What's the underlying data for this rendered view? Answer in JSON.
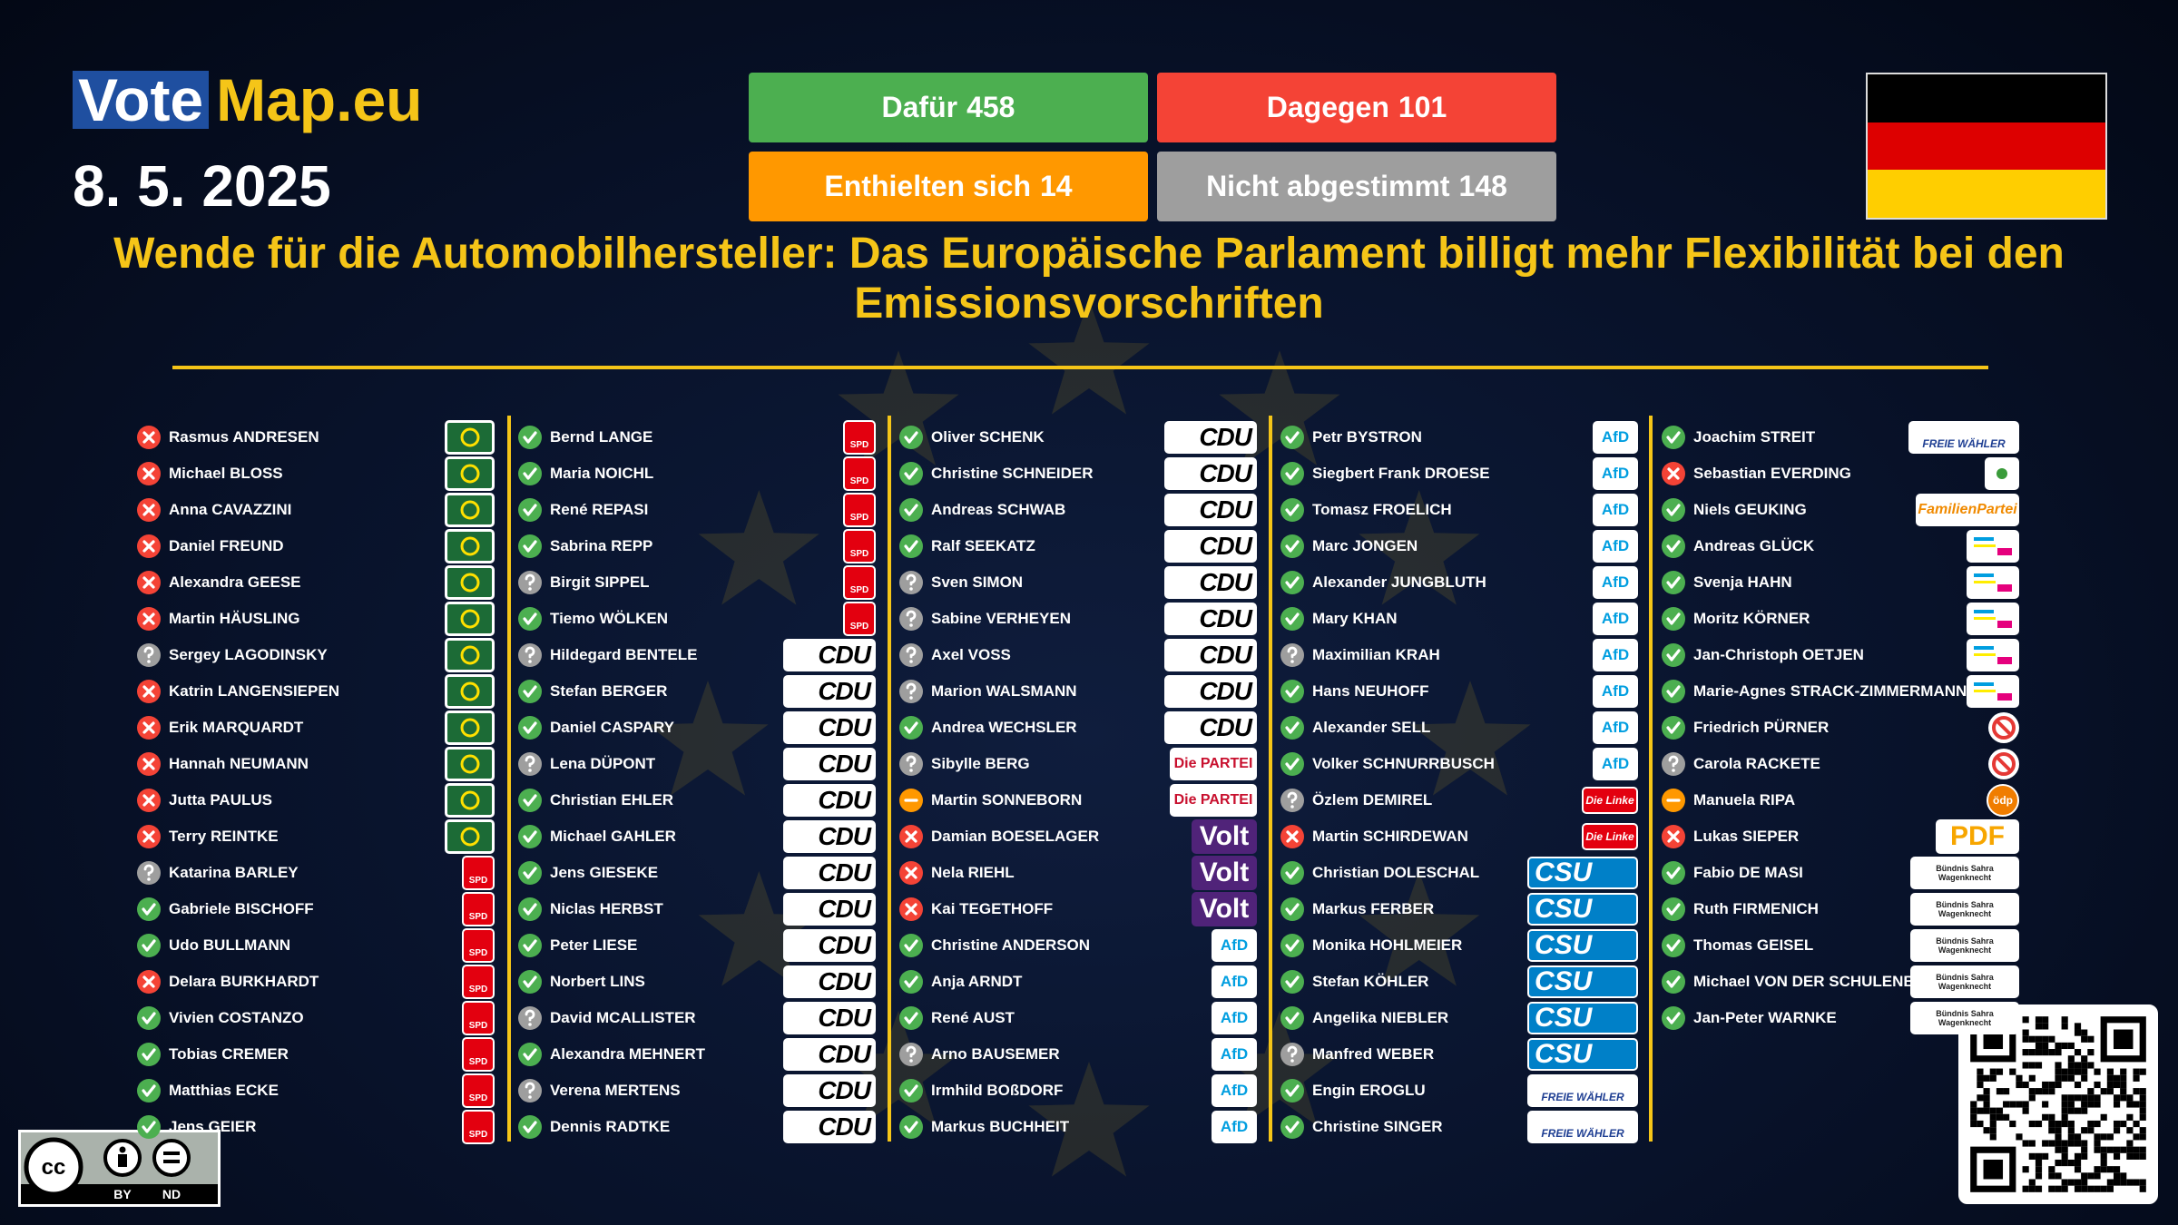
{
  "header": {
    "logo_vote": "Vote",
    "logo_map": "Map.eu",
    "date": "8. 5. 2025"
  },
  "tally": [
    {
      "label": "Dafür",
      "count": 458,
      "color": "#4caf50"
    },
    {
      "label": "Dagegen",
      "count": 101,
      "color": "#f44336"
    },
    {
      "label": "Enthielten sich",
      "count": 14,
      "color": "#ff9800"
    },
    {
      "label": "Nicht abgestimmt",
      "count": 148,
      "color": "#9e9e9e"
    }
  ],
  "title": "Wende für die Automobilhersteller: Das Europäische Parlament billigt mehr Flexibilität bei den Emissionsvorschriften",
  "parties": {
    "greens": {},
    "spd": {
      "label": "SPD"
    },
    "cdu": {
      "label": "CDU"
    },
    "partei": {
      "label": "Die PARTEI"
    },
    "volt": {
      "label": "Volt"
    },
    "afd": {
      "label": "AfD"
    },
    "linke": {
      "label": "Die Linke"
    },
    "csu": {
      "label": "CSU"
    },
    "fw": {
      "label": "FREIE WÄHLER"
    },
    "tier": {},
    "familie": {
      "label": "FamilienPartei"
    },
    "fdp": {},
    "indep": {},
    "oedp": {
      "label": "ödp"
    },
    "pdf": {
      "label": "PDF"
    },
    "bsw": {
      "label": "Bündnis Sahra Wagenknecht"
    }
  },
  "columns": [
    [
      {
        "name": "Rasmus ANDRESEN",
        "vote": "against",
        "party": "greens"
      },
      {
        "name": "Michael BLOSS",
        "vote": "against",
        "party": "greens"
      },
      {
        "name": "Anna CAVAZZINI",
        "vote": "against",
        "party": "greens"
      },
      {
        "name": "Daniel FREUND",
        "vote": "against",
        "party": "greens"
      },
      {
        "name": "Alexandra GEESE",
        "vote": "against",
        "party": "greens"
      },
      {
        "name": "Martin HÄUSLING",
        "vote": "against",
        "party": "greens"
      },
      {
        "name": "Sergey LAGODINSKY",
        "vote": "absent",
        "party": "greens"
      },
      {
        "name": "Katrin LANGENSIEPEN",
        "vote": "against",
        "party": "greens"
      },
      {
        "name": "Erik MARQUARDT",
        "vote": "against",
        "party": "greens"
      },
      {
        "name": "Hannah NEUMANN",
        "vote": "against",
        "party": "greens"
      },
      {
        "name": "Jutta PAULUS",
        "vote": "against",
        "party": "greens"
      },
      {
        "name": "Terry REINTKE",
        "vote": "against",
        "party": "greens"
      },
      {
        "name": "Katarina BARLEY",
        "vote": "absent",
        "party": "spd"
      },
      {
        "name": "Gabriele BISCHOFF",
        "vote": "for",
        "party": "spd"
      },
      {
        "name": "Udo BULLMANN",
        "vote": "for",
        "party": "spd"
      },
      {
        "name": "Delara BURKHARDT",
        "vote": "against",
        "party": "spd"
      },
      {
        "name": "Vivien COSTANZO",
        "vote": "for",
        "party": "spd"
      },
      {
        "name": "Tobias CREMER",
        "vote": "for",
        "party": "spd"
      },
      {
        "name": "Matthias ECKE",
        "vote": "for",
        "party": "spd"
      },
      {
        "name": "Jens GEIER",
        "vote": "for",
        "party": "spd"
      }
    ],
    [
      {
        "name": "Bernd LANGE",
        "vote": "for",
        "party": "spd"
      },
      {
        "name": "Maria NOICHL",
        "vote": "for",
        "party": "spd"
      },
      {
        "name": "René REPASI",
        "vote": "for",
        "party": "spd"
      },
      {
        "name": "Sabrina REPP",
        "vote": "for",
        "party": "spd"
      },
      {
        "name": "Birgit SIPPEL",
        "vote": "absent",
        "party": "spd"
      },
      {
        "name": "Tiemo WÖLKEN",
        "vote": "for",
        "party": "spd"
      },
      {
        "name": "Hildegard BENTELE",
        "vote": "absent",
        "party": "cdu"
      },
      {
        "name": "Stefan BERGER",
        "vote": "for",
        "party": "cdu"
      },
      {
        "name": "Daniel CASPARY",
        "vote": "for",
        "party": "cdu"
      },
      {
        "name": "Lena DÜPONT",
        "vote": "absent",
        "party": "cdu"
      },
      {
        "name": "Christian EHLER",
        "vote": "for",
        "party": "cdu"
      },
      {
        "name": "Michael GAHLER",
        "vote": "for",
        "party": "cdu"
      },
      {
        "name": "Jens GIESEKE",
        "vote": "for",
        "party": "cdu"
      },
      {
        "name": "Niclas HERBST",
        "vote": "for",
        "party": "cdu"
      },
      {
        "name": "Peter LIESE",
        "vote": "for",
        "party": "cdu"
      },
      {
        "name": "Norbert LINS",
        "vote": "for",
        "party": "cdu"
      },
      {
        "name": "David MCALLISTER",
        "vote": "absent",
        "party": "cdu"
      },
      {
        "name": "Alexandra MEHNERT",
        "vote": "for",
        "party": "cdu"
      },
      {
        "name": "Verena MERTENS",
        "vote": "absent",
        "party": "cdu"
      },
      {
        "name": "Dennis RADTKE",
        "vote": "for",
        "party": "cdu"
      }
    ],
    [
      {
        "name": "Oliver SCHENK",
        "vote": "for",
        "party": "cdu"
      },
      {
        "name": "Christine SCHNEIDER",
        "vote": "for",
        "party": "cdu"
      },
      {
        "name": "Andreas SCHWAB",
        "vote": "for",
        "party": "cdu"
      },
      {
        "name": "Ralf SEEKATZ",
        "vote": "for",
        "party": "cdu"
      },
      {
        "name": "Sven SIMON",
        "vote": "absent",
        "party": "cdu"
      },
      {
        "name": "Sabine VERHEYEN",
        "vote": "absent",
        "party": "cdu"
      },
      {
        "name": "Axel VOSS",
        "vote": "absent",
        "party": "cdu"
      },
      {
        "name": "Marion WALSMANN",
        "vote": "absent",
        "party": "cdu"
      },
      {
        "name": "Andrea WECHSLER",
        "vote": "for",
        "party": "cdu"
      },
      {
        "name": "Sibylle BERG",
        "vote": "absent",
        "party": "partei"
      },
      {
        "name": "Martin SONNEBORN",
        "vote": "abstain",
        "party": "partei"
      },
      {
        "name": "Damian BOESELAGER",
        "vote": "against",
        "party": "volt"
      },
      {
        "name": "Nela RIEHL",
        "vote": "against",
        "party": "volt"
      },
      {
        "name": "Kai TEGETHOFF",
        "vote": "against",
        "party": "volt"
      },
      {
        "name": "Christine ANDERSON",
        "vote": "for",
        "party": "afd"
      },
      {
        "name": "Anja ARNDT",
        "vote": "for",
        "party": "afd"
      },
      {
        "name": "René AUST",
        "vote": "for",
        "party": "afd"
      },
      {
        "name": "Arno BAUSEMER",
        "vote": "absent",
        "party": "afd"
      },
      {
        "name": "Irmhild BOßDORF",
        "vote": "for",
        "party": "afd"
      },
      {
        "name": "Markus BUCHHEIT",
        "vote": "for",
        "party": "afd"
      }
    ],
    [
      {
        "name": "Petr BYSTRON",
        "vote": "for",
        "party": "afd"
      },
      {
        "name": "Siegbert Frank DROESE",
        "vote": "for",
        "party": "afd"
      },
      {
        "name": "Tomasz FROELICH",
        "vote": "for",
        "party": "afd"
      },
      {
        "name": "Marc JONGEN",
        "vote": "for",
        "party": "afd"
      },
      {
        "name": "Alexander JUNGBLUTH",
        "vote": "for",
        "party": "afd"
      },
      {
        "name": "Mary KHAN",
        "vote": "for",
        "party": "afd"
      },
      {
        "name": "Maximilian KRAH",
        "vote": "absent",
        "party": "afd"
      },
      {
        "name": "Hans NEUHOFF",
        "vote": "for",
        "party": "afd"
      },
      {
        "name": "Alexander SELL",
        "vote": "for",
        "party": "afd"
      },
      {
        "name": "Volker SCHNURRBUSCH",
        "vote": "for",
        "party": "afd"
      },
      {
        "name": "Özlem DEMIREL",
        "vote": "absent",
        "party": "linke"
      },
      {
        "name": "Martin SCHIRDEWAN",
        "vote": "against",
        "party": "linke"
      },
      {
        "name": "Christian DOLESCHAL",
        "vote": "for",
        "party": "csu"
      },
      {
        "name": "Markus FERBER",
        "vote": "for",
        "party": "csu"
      },
      {
        "name": "Monika HOHLMEIER",
        "vote": "for",
        "party": "csu"
      },
      {
        "name": "Stefan KÖHLER",
        "vote": "for",
        "party": "csu"
      },
      {
        "name": "Angelika NIEBLER",
        "vote": "for",
        "party": "csu"
      },
      {
        "name": "Manfred WEBER",
        "vote": "absent",
        "party": "csu"
      },
      {
        "name": "Engin EROGLU",
        "vote": "for",
        "party": "fw"
      },
      {
        "name": "Christine SINGER",
        "vote": "for",
        "party": "fw"
      }
    ],
    [
      {
        "name": "Joachim STREIT",
        "vote": "for",
        "party": "fw"
      },
      {
        "name": "Sebastian EVERDING",
        "vote": "against",
        "party": "tier"
      },
      {
        "name": "Niels GEUKING",
        "vote": "for",
        "party": "familie"
      },
      {
        "name": "Andreas GLÜCK",
        "vote": "for",
        "party": "fdp"
      },
      {
        "name": "Svenja HAHN",
        "vote": "for",
        "party": "fdp"
      },
      {
        "name": "Moritz KÖRNER",
        "vote": "for",
        "party": "fdp"
      },
      {
        "name": "Jan-Christoph OETJEN",
        "vote": "for",
        "party": "fdp"
      },
      {
        "name": "Marie-Agnes STRACK-ZIMMERMANN",
        "vote": "for",
        "party": "fdp"
      },
      {
        "name": "Friedrich PÜRNER",
        "vote": "for",
        "party": "indep"
      },
      {
        "name": "Carola RACKETE",
        "vote": "absent",
        "party": "indep"
      },
      {
        "name": "Manuela RIPA",
        "vote": "abstain",
        "party": "oedp"
      },
      {
        "name": "Lukas SIEPER",
        "vote": "against",
        "party": "pdf"
      },
      {
        "name": "Fabio DE MASI",
        "vote": "for",
        "party": "bsw"
      },
      {
        "name": "Ruth FIRMENICH",
        "vote": "for",
        "party": "bsw"
      },
      {
        "name": "Thomas GEISEL",
        "vote": "for",
        "party": "bsw"
      },
      {
        "name": "Michael VON DER SCHULENBURG",
        "vote": "for",
        "party": "bsw"
      },
      {
        "name": "Jan-Peter WARNKE",
        "vote": "for",
        "party": "bsw"
      }
    ]
  ],
  "license": {
    "cc": "cc",
    "by": "BY",
    "nd": "ND"
  }
}
